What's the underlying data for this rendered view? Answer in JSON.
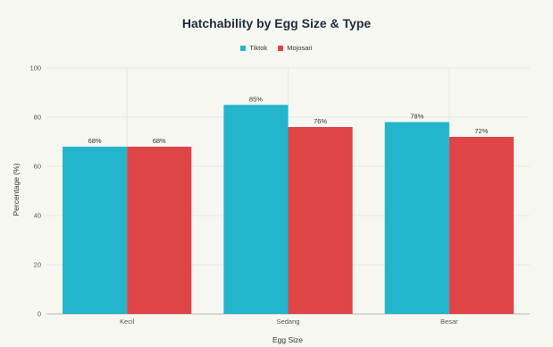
{
  "chart_data": {
    "type": "bar",
    "title": "Hatchability by Egg Size & Type",
    "xlabel": "Egg Size",
    "ylabel": "Percentage (%)",
    "categories": [
      "Kecil",
      "Sedang",
      "Besar"
    ],
    "series": [
      {
        "name": "Tiktok",
        "color": "#22b5cc",
        "values": [
          68,
          85,
          78
        ],
        "labels": [
          "68%",
          "85%",
          "78%"
        ]
      },
      {
        "name": "Mojosari",
        "color": "#df4447",
        "values": [
          68,
          76,
          72
        ],
        "labels": [
          "68%",
          "76%",
          "72%"
        ]
      }
    ],
    "ylim": [
      0,
      100
    ],
    "yticks": [
      0,
      20,
      40,
      60,
      80,
      100
    ],
    "grid": true,
    "legend_position": "top-center"
  }
}
